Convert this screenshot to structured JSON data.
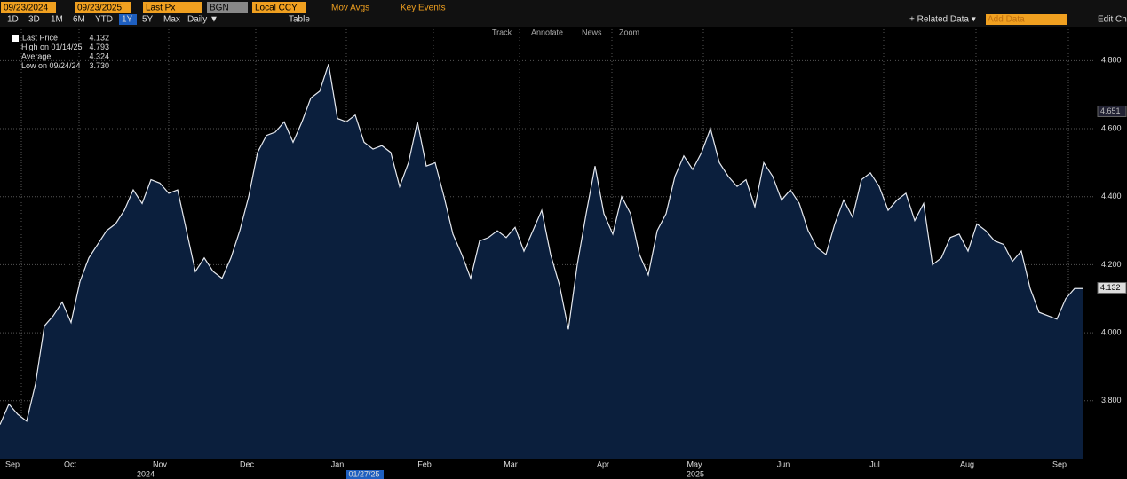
{
  "toolbar": {
    "start_date": "09/23/2024",
    "end_date": "09/23/2025",
    "field": "Last Px",
    "source": "BGN",
    "currency": "Local CCY",
    "mov_avgs": "Mov Avgs",
    "key_events": "Key Events",
    "periods": [
      "1D",
      "3D",
      "1M",
      "6M",
      "YTD",
      "1Y",
      "5Y",
      "Max"
    ],
    "frequency": "Daily ▼",
    "table": "Table",
    "related_data": "+ Related Data ▾",
    "add_data": "Add Data",
    "edit": "Edit Cha"
  },
  "chart_tools": [
    "Track",
    "Annotate",
    "News",
    "Zoom"
  ],
  "legend": [
    {
      "label": "Last Price",
      "value": "4.132"
    },
    {
      "label": "High on 01/14/25",
      "value": "4.793"
    },
    {
      "label": "Average",
      "value": "4.324"
    },
    {
      "label": "Low on 09/24/24",
      "value": "3.730"
    }
  ],
  "chart_data": {
    "type": "line",
    "series": [
      {
        "name": "Last Price",
        "color": "#e6e9ef",
        "values": [
          3.73,
          3.79,
          3.76,
          3.74,
          3.85,
          4.02,
          4.05,
          4.09,
          4.03,
          4.15,
          4.22,
          4.26,
          4.3,
          4.32,
          4.36,
          4.42,
          4.38,
          4.45,
          4.44,
          4.41,
          4.42,
          4.3,
          4.18,
          4.22,
          4.18,
          4.16,
          4.22,
          4.3,
          4.4,
          4.53,
          4.58,
          4.59,
          4.62,
          4.56,
          4.62,
          4.69,
          4.71,
          4.79,
          4.63,
          4.62,
          4.64,
          4.56,
          4.54,
          4.55,
          4.53,
          4.43,
          4.5,
          4.62,
          4.49,
          4.5,
          4.4,
          4.29,
          4.23,
          4.16,
          4.27,
          4.28,
          4.3,
          4.28,
          4.31,
          4.24,
          4.3,
          4.36,
          4.23,
          4.14,
          4.01,
          4.2,
          4.35,
          4.49,
          4.35,
          4.29,
          4.4,
          4.35,
          4.23,
          4.17,
          4.3,
          4.35,
          4.46,
          4.52,
          4.48,
          4.53,
          4.6,
          4.5,
          4.46,
          4.43,
          4.45,
          4.37,
          4.5,
          4.46,
          4.39,
          4.42,
          4.38,
          4.3,
          4.25,
          4.23,
          4.32,
          4.39,
          4.34,
          4.45,
          4.47,
          4.43,
          4.36,
          4.39,
          4.41,
          4.33,
          4.38,
          4.2,
          4.22,
          4.28,
          4.29,
          4.24,
          4.32,
          4.3,
          4.27,
          4.26,
          4.21,
          4.24,
          4.13,
          4.06,
          4.05,
          4.04,
          4.1,
          4.13,
          4.13
        ]
      }
    ],
    "ylim": [
      3.63,
      4.9
    ],
    "yticks": [
      {
        "value": 3.8,
        "label": "3.800"
      },
      {
        "value": 4.0,
        "label": "4.000"
      },
      {
        "value": 4.2,
        "label": "4.200"
      },
      {
        "value": 4.4,
        "label": "4.400"
      },
      {
        "value": 4.6,
        "label": "4.600"
      },
      {
        "value": 4.8,
        "label": "4.800"
      }
    ],
    "xlim": [
      0,
      122
    ],
    "xticks": [
      {
        "value": 1.4,
        "label": "Sep"
      },
      {
        "value": 7.9,
        "label": "Oct"
      },
      {
        "value": 18,
        "label": "Nov"
      },
      {
        "value": 27.8,
        "label": "Dec"
      },
      {
        "value": 38,
        "label": "Jan"
      },
      {
        "value": 47.8,
        "label": "Feb"
      },
      {
        "value": 57.5,
        "label": "Mar"
      },
      {
        "value": 67.9,
        "label": "Apr"
      },
      {
        "value": 78.2,
        "label": "May"
      },
      {
        "value": 88.2,
        "label": "Jun"
      },
      {
        "value": 98.5,
        "label": "Jul"
      },
      {
        "value": 108.9,
        "label": "Aug"
      },
      {
        "value": 119.3,
        "label": "Sep"
      }
    ],
    "years": [
      {
        "value": 16.4,
        "label": "2024"
      },
      {
        "value": 78.3,
        "label": "2025"
      }
    ],
    "crosshair_date": {
      "value": 41,
      "label": "01/27/25"
    },
    "price_tags": [
      4.651,
      4.132
    ],
    "grid": true
  }
}
